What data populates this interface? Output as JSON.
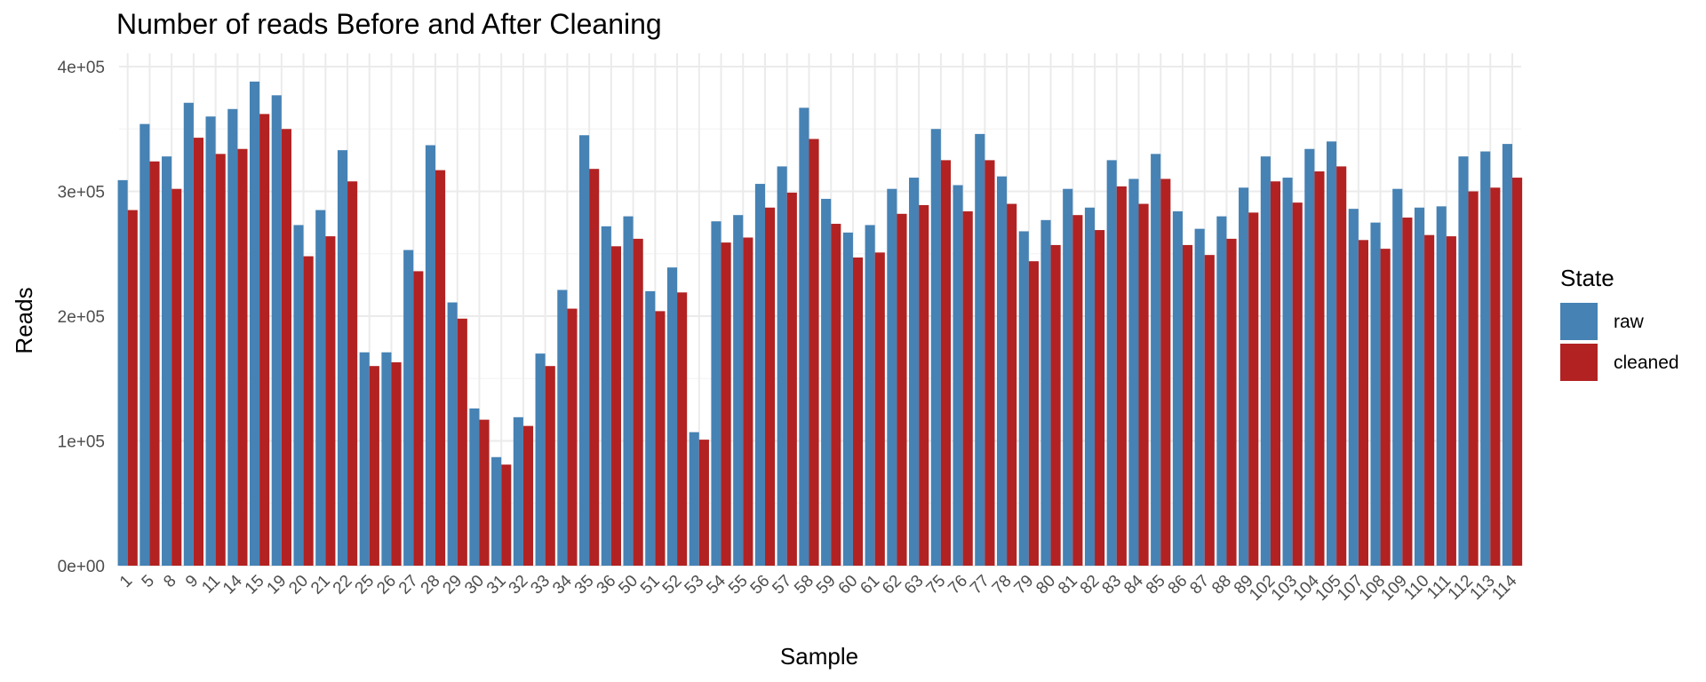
{
  "chart_data": {
    "type": "bar",
    "title": "Number of reads Before and After Cleaning",
    "xlabel": "Sample",
    "ylabel": "Reads",
    "ylim": [
      0,
      400000
    ],
    "yticks": [
      0,
      100000,
      200000,
      300000,
      400000
    ],
    "ytick_labels": [
      "0e+00",
      "1e+05",
      "2e+05",
      "3e+05",
      "4e+05"
    ],
    "grid": true,
    "legend": {
      "title": "State",
      "position": "right"
    },
    "categories": [
      "1",
      "5",
      "8",
      "9",
      "11",
      "14",
      "15",
      "19",
      "20",
      "21",
      "22",
      "25",
      "26",
      "27",
      "28",
      "29",
      "30",
      "31",
      "32",
      "33",
      "34",
      "35",
      "36",
      "50",
      "51",
      "52",
      "53",
      "54",
      "55",
      "56",
      "57",
      "58",
      "59",
      "60",
      "61",
      "62",
      "63",
      "75",
      "76",
      "77",
      "78",
      "79",
      "80",
      "81",
      "82",
      "83",
      "84",
      "85",
      "86",
      "87",
      "88",
      "89",
      "102",
      "103",
      "104",
      "105",
      "107",
      "108",
      "109",
      "110",
      "111",
      "112",
      "113",
      "114"
    ],
    "series": [
      {
        "name": "raw",
        "color": "#4682b4",
        "values": [
          309000,
          354000,
          328000,
          371000,
          360000,
          366000,
          388000,
          377000,
          273000,
          285000,
          333000,
          171000,
          171000,
          253000,
          337000,
          211000,
          126000,
          87000,
          119000,
          170000,
          221000,
          345000,
          272000,
          280000,
          220000,
          239000,
          107000,
          276000,
          281000,
          306000,
          320000,
          367000,
          294000,
          267000,
          273000,
          302000,
          311000,
          350000,
          305000,
          346000,
          312000,
          268000,
          277000,
          302000,
          287000,
          325000,
          310000,
          330000,
          284000,
          270000,
          280000,
          303000,
          328000,
          311000,
          334000,
          340000,
          286000,
          275000,
          302000,
          287000,
          288000,
          328000,
          332000,
          338000
        ]
      },
      {
        "name": "cleaned",
        "color": "#b22222",
        "values": [
          285000,
          324000,
          302000,
          343000,
          330000,
          334000,
          362000,
          350000,
          248000,
          264000,
          308000,
          160000,
          163000,
          236000,
          317000,
          198000,
          117000,
          81000,
          112000,
          160000,
          206000,
          318000,
          256000,
          262000,
          204000,
          219000,
          101000,
          259000,
          263000,
          287000,
          299000,
          342000,
          274000,
          247000,
          251000,
          282000,
          289000,
          325000,
          284000,
          325000,
          290000,
          244000,
          257000,
          281000,
          269000,
          304000,
          290000,
          310000,
          257000,
          249000,
          262000,
          283000,
          308000,
          291000,
          316000,
          320000,
          261000,
          254000,
          279000,
          265000,
          264000,
          300000,
          303000,
          311000
        ]
      }
    ]
  }
}
